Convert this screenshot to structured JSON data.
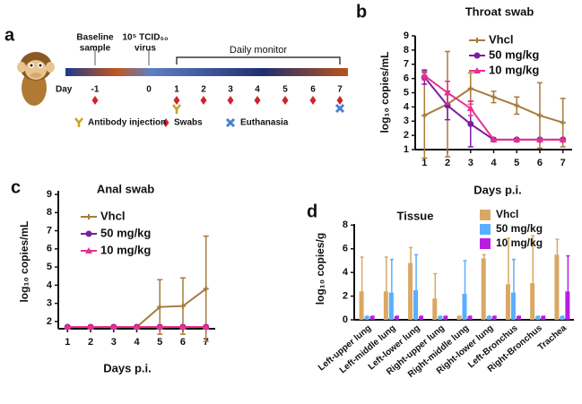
{
  "timeline": {
    "panel": "a",
    "baseline_lines": [
      "Baseline",
      "sample"
    ],
    "virus_lines": [
      "10⁵ TCID₅₀",
      "virus"
    ],
    "monitor": "Daily monitor",
    "day_label": "Day",
    "days": [
      "-1",
      "0",
      "1",
      "2",
      "3",
      "4",
      "5",
      "6",
      "7"
    ],
    "legend": [
      "Antibody injection",
      "Swabs",
      "Euthanasia"
    ]
  },
  "chart_data": [
    {
      "panel": "b",
      "type": "line",
      "title": "Throat swab",
      "xlabel": "Days p.i.",
      "ylabel": "log₁₀ copies/mL",
      "x": [
        1,
        2,
        3,
        4,
        5,
        6,
        7
      ],
      "xlim": [
        0.6,
        7.4
      ],
      "xticks": [
        1,
        2,
        3,
        4,
        5,
        6,
        7
      ],
      "ylim": [
        1,
        9
      ],
      "yticks": [
        1,
        2,
        3,
        4,
        5,
        6,
        7,
        8,
        9
      ],
      "series": [
        {
          "name": "Vhcl",
          "color": "#a67c3d",
          "marker": "tick",
          "values": [
            3.4,
            4.2,
            5.3,
            4.7,
            4.1,
            3.4,
            2.9
          ],
          "errors": [
            3.0,
            3.7,
            1.1,
            0.4,
            0.6,
            2.3,
            1.7
          ]
        },
        {
          "name": "50 mg/kg",
          "color": "#7a1fa2",
          "marker": "circle",
          "values": [
            6.1,
            4.1,
            2.8,
            1.7,
            1.7,
            1.7,
            1.7
          ],
          "errors": [
            0.5,
            1.0,
            1.6,
            0,
            0,
            0,
            0
          ]
        },
        {
          "name": "10 mg/kg",
          "color": "#e8308f",
          "marker": "triangle",
          "values": [
            6.2,
            5.0,
            3.9,
            1.7,
            1.7,
            1.7,
            1.7
          ],
          "errors": [
            0.3,
            0.8,
            0.5,
            0,
            0,
            0,
            0
          ]
        }
      ]
    },
    {
      "panel": "c",
      "type": "line",
      "title": "Anal swab",
      "xlabel": "Days p.i.",
      "ylabel": "log₁₀ copies/mL",
      "x": [
        1,
        2,
        3,
        4,
        5,
        6,
        7
      ],
      "xlim": [
        0.6,
        7.4
      ],
      "xticks": [
        1,
        2,
        3,
        4,
        5,
        6,
        7
      ],
      "ylim": [
        1.6,
        9.2
      ],
      "yticks": [
        2,
        3,
        4,
        5,
        6,
        7,
        8,
        9
      ],
      "series": [
        {
          "name": "Vhcl",
          "color": "#a67c3d",
          "marker": "tick",
          "values": [
            1.7,
            1.7,
            1.7,
            1.7,
            2.8,
            2.85,
            3.8
          ],
          "errors": [
            0,
            0,
            0,
            0,
            1.5,
            1.55,
            2.9
          ]
        },
        {
          "name": "50 mg/kg",
          "color": "#7a1fa2",
          "marker": "circle",
          "values": [
            1.7,
            1.7,
            1.7,
            1.7,
            1.7,
            1.7,
            1.7
          ],
          "errors": [
            0,
            0,
            0,
            0,
            0,
            0,
            0
          ]
        },
        {
          "name": "10 mg/kg",
          "color": "#e8308f",
          "marker": "triangle",
          "values": [
            1.7,
            1.7,
            1.7,
            1.7,
            1.7,
            1.7,
            1.7
          ],
          "errors": [
            0,
            0,
            0,
            0,
            0,
            0,
            0
          ]
        }
      ]
    },
    {
      "panel": "d",
      "type": "bar",
      "title": "Tissue",
      "ylabel": "log₁₀ copies/g",
      "categories": [
        "Left-upper lung",
        "Left-middle lung",
        "Left-lower lung",
        "Right-upper lung",
        "Right-middle lung",
        "Right-lower lung",
        "Left-Bronchus",
        "Right-Bronchus",
        "Trachea"
      ],
      "ylim": [
        0,
        8.1
      ],
      "yticks": [
        0,
        2,
        4,
        6,
        8
      ],
      "series": [
        {
          "name": "Vhcl",
          "color": "#d9a865",
          "values": [
            2.4,
            2.4,
            4.8,
            1.8,
            0.3,
            5.2,
            3.0,
            3.1,
            5.5
          ],
          "errors": [
            2.9,
            2.9,
            1.3,
            2.1,
            0,
            0.3,
            3.9,
            4.0,
            1.3
          ]
        },
        {
          "name": "50 mg/kg",
          "color": "#5aaeff",
          "values": [
            0.3,
            2.3,
            2.5,
            0.3,
            2.2,
            0.3,
            2.3,
            0.3,
            0.3
          ],
          "errors": [
            0,
            2.8,
            3.0,
            0,
            2.8,
            0,
            2.8,
            0,
            0
          ]
        },
        {
          "name": "10 mg/kg",
          "color": "#b71fe0",
          "values": [
            0.3,
            0.3,
            0.3,
            0.3,
            0.3,
            0.3,
            0.3,
            0.3,
            2.4
          ],
          "errors": [
            0,
            0,
            0,
            0,
            0,
            0,
            0,
            0,
            3.0
          ]
        }
      ]
    }
  ]
}
